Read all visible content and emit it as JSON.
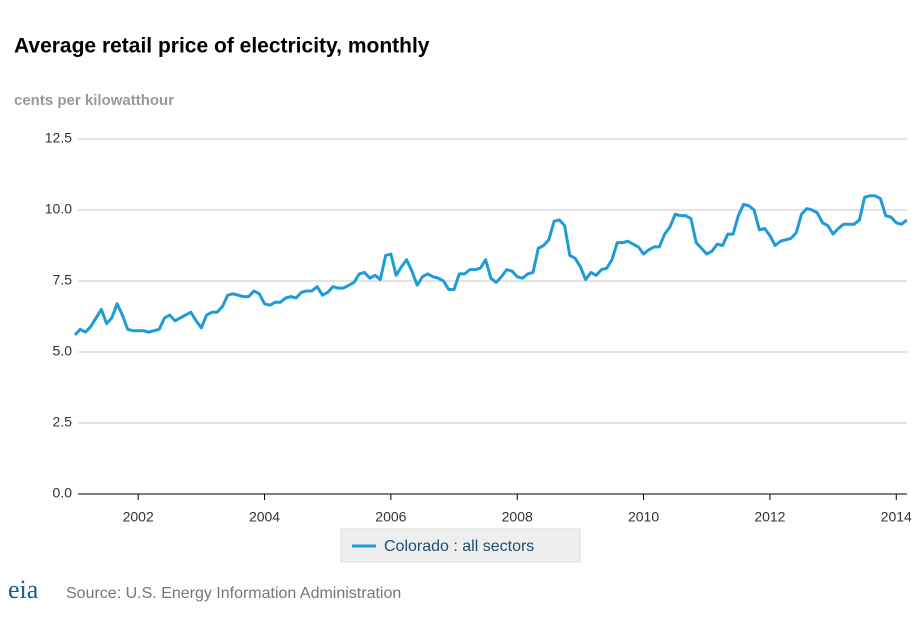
{
  "chart_data": {
    "type": "line",
    "title": "Average retail price of electricity, monthly",
    "y_axis_label": "cents per kilowatthour",
    "source": "Source: U.S. Energy Information Administration",
    "logo": "eia",
    "x": [
      2001,
      2001.083,
      2001.167,
      2001.25,
      2001.333,
      2001.417,
      2001.5,
      2001.583,
      2001.667,
      2001.75,
      2001.833,
      2001.917,
      2002,
      2002.083,
      2002.167,
      2002.25,
      2002.333,
      2002.417,
      2002.5,
      2002.583,
      2002.667,
      2002.75,
      2002.833,
      2002.917,
      2003,
      2003.083,
      2003.167,
      2003.25,
      2003.333,
      2003.417,
      2003.5,
      2003.583,
      2003.667,
      2003.75,
      2003.833,
      2003.917,
      2004,
      2004.083,
      2004.167,
      2004.25,
      2004.333,
      2004.417,
      2004.5,
      2004.583,
      2004.667,
      2004.75,
      2004.833,
      2004.917,
      2005,
      2005.083,
      2005.167,
      2005.25,
      2005.333,
      2005.417,
      2005.5,
      2005.583,
      2005.667,
      2005.75,
      2005.833,
      2005.917,
      2006,
      2006.083,
      2006.167,
      2006.25,
      2006.333,
      2006.417,
      2006.5,
      2006.583,
      2006.667,
      2006.75,
      2006.833,
      2006.917,
      2007,
      2007.083,
      2007.167,
      2007.25,
      2007.333,
      2007.417,
      2007.5,
      2007.583,
      2007.667,
      2007.75,
      2007.833,
      2007.917,
      2008,
      2008.083,
      2008.167,
      2008.25,
      2008.333,
      2008.417,
      2008.5,
      2008.583,
      2008.667,
      2008.75,
      2008.833,
      2008.917,
      2009,
      2009.083,
      2009.167,
      2009.25,
      2009.333,
      2009.417,
      2009.5,
      2009.583,
      2009.667,
      2009.75,
      2009.833,
      2009.917,
      2010,
      2010.083,
      2010.167,
      2010.25,
      2010.333,
      2010.417,
      2010.5,
      2010.583,
      2010.667,
      2010.75,
      2010.833,
      2010.917,
      2011,
      2011.083,
      2011.167,
      2011.25,
      2011.333,
      2011.417,
      2011.5,
      2011.583,
      2011.667,
      2011.75,
      2011.833,
      2011.917,
      2012,
      2012.083,
      2012.167,
      2012.25,
      2012.333,
      2012.417,
      2012.5,
      2012.583,
      2012.667,
      2012.75,
      2012.833,
      2012.917,
      2013,
      2013.083,
      2013.167,
      2013.25,
      2013.333,
      2013.417,
      2013.5,
      2013.583,
      2013.667,
      2013.75,
      2013.833,
      2013.917,
      2014,
      2014.083,
      2014.167
    ],
    "series": [
      {
        "name": "Colorado : all sectors",
        "color": "#1f9bd7",
        "values": [
          5.6,
          5.8,
          5.7,
          5.9,
          6.2,
          6.5,
          6.0,
          6.2,
          6.7,
          6.3,
          5.8,
          5.75,
          5.75,
          5.75,
          5.7,
          5.75,
          5.8,
          6.2,
          6.3,
          6.1,
          6.2,
          6.3,
          6.4,
          6.1,
          5.85,
          6.3,
          6.4,
          6.4,
          6.6,
          7.0,
          7.05,
          7.0,
          6.95,
          6.95,
          7.15,
          7.05,
          6.7,
          6.65,
          6.75,
          6.75,
          6.9,
          6.95,
          6.9,
          7.1,
          7.15,
          7.15,
          7.3,
          7.0,
          7.1,
          7.3,
          7.25,
          7.25,
          7.35,
          7.45,
          7.75,
          7.8,
          7.6,
          7.7,
          7.55,
          8.4,
          8.45,
          7.7,
          8.0,
          8.25,
          7.85,
          7.35,
          7.65,
          7.75,
          7.65,
          7.6,
          7.5,
          7.2,
          7.2,
          7.75,
          7.75,
          7.9,
          7.9,
          7.95,
          8.25,
          7.6,
          7.45,
          7.65,
          7.9,
          7.85,
          7.65,
          7.6,
          7.75,
          7.8,
          8.65,
          8.75,
          8.95,
          9.6,
          9.65,
          9.45,
          8.4,
          8.3,
          8.0,
          7.55,
          7.8,
          7.7,
          7.9,
          7.95,
          8.25,
          8.85,
          8.85,
          8.9,
          8.8,
          8.7,
          8.45,
          8.6,
          8.7,
          8.7,
          9.15,
          9.4,
          9.85,
          9.8,
          9.8,
          9.7,
          8.85,
          8.65,
          8.45,
          8.55,
          8.8,
          8.75,
          9.15,
          9.15,
          9.8,
          10.2,
          10.15,
          10.0,
          9.3,
          9.35,
          9.1,
          8.75,
          8.9,
          8.95,
          9.0,
          9.2,
          9.85,
          10.05,
          10.0,
          9.9,
          9.55,
          9.45,
          9.15,
          9.35,
          9.5,
          9.5,
          9.5,
          9.65,
          10.45,
          10.5,
          10.5,
          10.4,
          9.8,
          9.75,
          9.55,
          9.5,
          9.65
        ]
      }
    ],
    "xlim": [
      2001,
      2014.17
    ],
    "xticks": [
      2002,
      2004,
      2006,
      2008,
      2010,
      2012,
      2014
    ],
    "ylim": [
      0,
      12.5
    ],
    "yticks": [
      {
        "value": 0,
        "label": "0.0"
      },
      2.5,
      {
        "value": 5,
        "label": "5.0"
      },
      7.5,
      {
        "value": 10,
        "label": "10.0"
      },
      12.5
    ],
    "grid": true
  }
}
